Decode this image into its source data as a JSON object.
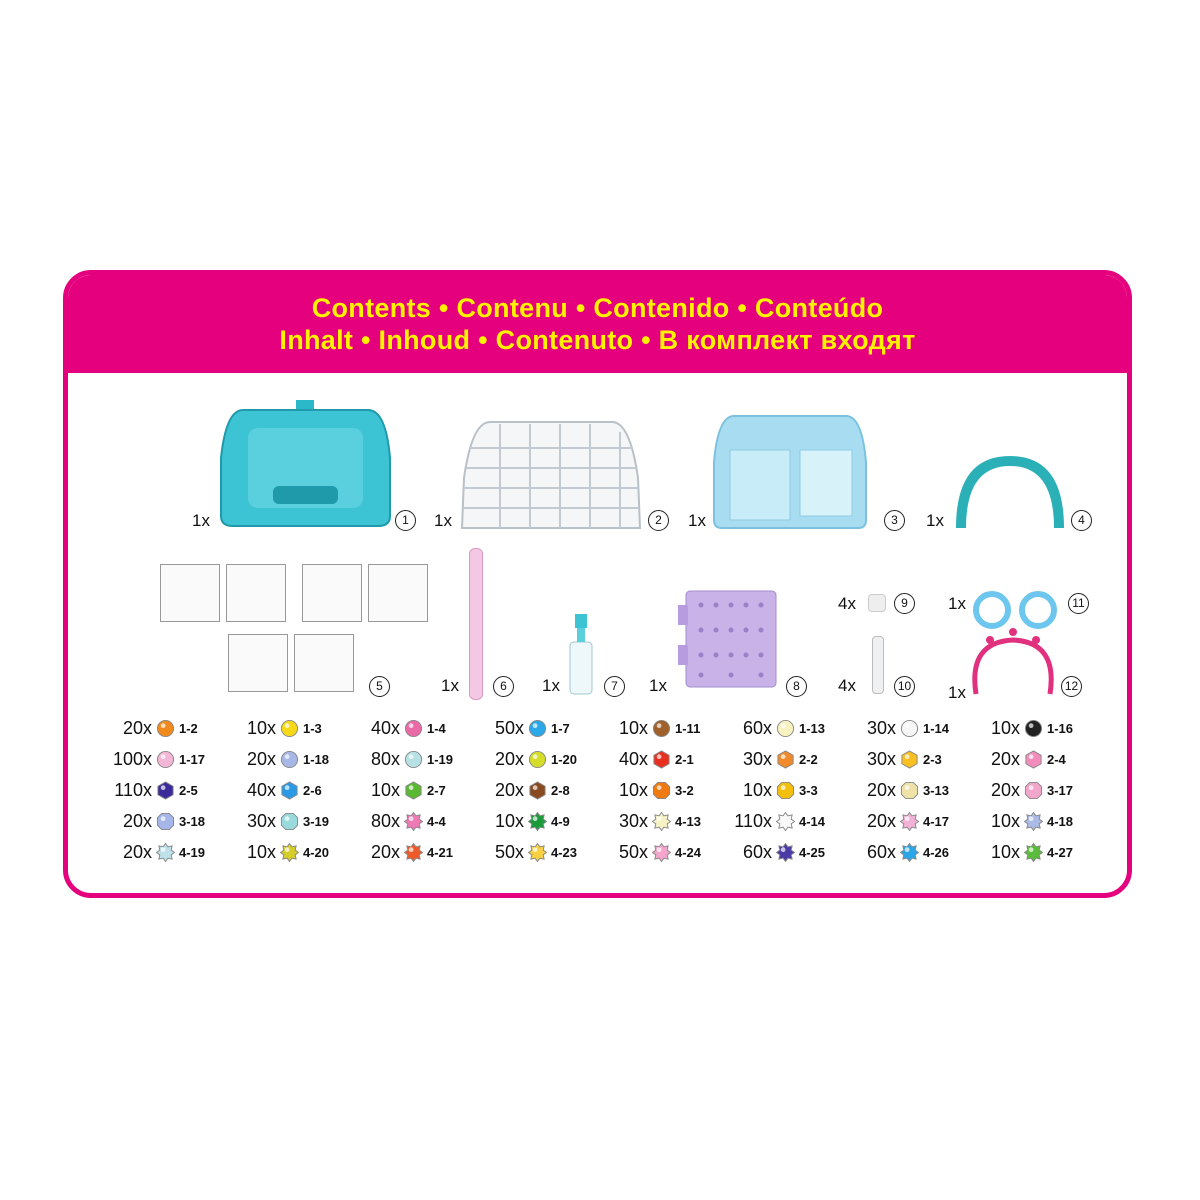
{
  "title": {
    "line1": "Contents • Contenu • Contenido • Conteúdo",
    "line2": "Inhalt • Inhoud • Contenuto • В комплект входят"
  },
  "colors": {
    "frame": "#e5007e",
    "title": "#fff200"
  },
  "components": [
    {
      "qty": "1x",
      "num": "1",
      "name": "case"
    },
    {
      "qty": "1x",
      "num": "2",
      "name": "bead-tray"
    },
    {
      "qty": "1x",
      "num": "3",
      "name": "case-lid"
    },
    {
      "qty": "1x",
      "num": "4",
      "name": "arch-template"
    },
    {
      "qty": "",
      "num": "5",
      "name": "template-sheets"
    },
    {
      "qty": "1x",
      "num": "6",
      "name": "bead-pen"
    },
    {
      "qty": "1x",
      "num": "7",
      "name": "spray-bottle"
    },
    {
      "qty": "1x",
      "num": "8",
      "name": "pegboard"
    },
    {
      "qty": "4x",
      "num": "9",
      "name": "connector"
    },
    {
      "qty": "4x",
      "num": "10",
      "name": "tool"
    },
    {
      "qty": "1x",
      "num": "11",
      "name": "rings"
    },
    {
      "qty": "1x",
      "num": "12",
      "name": "headband"
    }
  ],
  "beads": [
    [
      {
        "q": "20x",
        "c": "1-2",
        "col": "#f08a1c",
        "s": "round"
      },
      {
        "q": "10x",
        "c": "1-3",
        "col": "#f7d91a",
        "s": "round"
      },
      {
        "q": "40x",
        "c": "1-4",
        "col": "#ea6aa8",
        "s": "round"
      },
      {
        "q": "50x",
        "c": "1-7",
        "col": "#2aa8e8",
        "s": "round"
      },
      {
        "q": "10x",
        "c": "1-11",
        "col": "#a0602a",
        "s": "round"
      },
      {
        "q": "60x",
        "c": "1-13",
        "col": "#f8f2c0",
        "s": "round"
      },
      {
        "q": "30x",
        "c": "1-14",
        "col": "#f6f6f6",
        "s": "round"
      },
      {
        "q": "10x",
        "c": "1-16",
        "col": "#222222",
        "s": "round"
      }
    ],
    [
      {
        "q": "100x",
        "c": "1-17",
        "col": "#f4b6d6",
        "s": "round"
      },
      {
        "q": "20x",
        "c": "1-18",
        "col": "#a8b8e6",
        "s": "round"
      },
      {
        "q": "80x",
        "c": "1-19",
        "col": "#b6e2e6",
        "s": "round"
      },
      {
        "q": "20x",
        "c": "1-20",
        "col": "#d6dc2a",
        "s": "round"
      },
      {
        "q": "40x",
        "c": "2-1",
        "col": "#e83020",
        "s": "hex"
      },
      {
        "q": "30x",
        "c": "2-2",
        "col": "#f08a2a",
        "s": "hex"
      },
      {
        "q": "30x",
        "c": "2-3",
        "col": "#f8c020",
        "s": "hex"
      },
      {
        "q": "20x",
        "c": "2-4",
        "col": "#f28cbc",
        "s": "hex"
      }
    ],
    [
      {
        "q": "110x",
        "c": "2-5",
        "col": "#3a2a9a",
        "s": "hex"
      },
      {
        "q": "40x",
        "c": "2-6",
        "col": "#2a9ae6",
        "s": "hex"
      },
      {
        "q": "10x",
        "c": "2-7",
        "col": "#5ab832",
        "s": "hex"
      },
      {
        "q": "20x",
        "c": "2-8",
        "col": "#8a4a20",
        "s": "hex"
      },
      {
        "q": "10x",
        "c": "3-2",
        "col": "#f07a10",
        "s": "oct"
      },
      {
        "q": "10x",
        "c": "3-3",
        "col": "#f4c010",
        "s": "oct"
      },
      {
        "q": "20x",
        "c": "3-13",
        "col": "#eee2a8",
        "s": "oct"
      },
      {
        "q": "20x",
        "c": "3-17",
        "col": "#f2a6cc",
        "s": "oct"
      }
    ],
    [
      {
        "q": "20x",
        "c": "3-18",
        "col": "#a6b6e8",
        "s": "oct"
      },
      {
        "q": "30x",
        "c": "3-19",
        "col": "#9adadc",
        "s": "oct"
      },
      {
        "q": "80x",
        "c": "4-4",
        "col": "#ee7ab6",
        "s": "star"
      },
      {
        "q": "10x",
        "c": "4-9",
        "col": "#1a9a3a",
        "s": "star"
      },
      {
        "q": "30x",
        "c": "4-13",
        "col": "#f6f2c4",
        "s": "star"
      },
      {
        "q": "110x",
        "c": "4-14",
        "col": "#f8f8f8",
        "s": "star"
      },
      {
        "q": "20x",
        "c": "4-17",
        "col": "#f2b2d6",
        "s": "star"
      },
      {
        "q": "10x",
        "c": "4-18",
        "col": "#aabce6",
        "s": "star"
      }
    ],
    [
      {
        "q": "20x",
        "c": "4-19",
        "col": "#bfe2ea",
        "s": "star"
      },
      {
        "q": "10x",
        "c": "4-20",
        "col": "#d6cc2a",
        "s": "star"
      },
      {
        "q": "20x",
        "c": "4-21",
        "col": "#ee5a2a",
        "s": "star"
      },
      {
        "q": "50x",
        "c": "4-23",
        "col": "#f8d040",
        "s": "star"
      },
      {
        "q": "50x",
        "c": "4-24",
        "col": "#f4a6cc",
        "s": "star"
      },
      {
        "q": "60x",
        "c": "4-25",
        "col": "#4a3aa6",
        "s": "star"
      },
      {
        "q": "60x",
        "c": "4-26",
        "col": "#2aa6e8",
        "s": "star"
      },
      {
        "q": "10x",
        "c": "4-27",
        "col": "#5abc3a",
        "s": "star"
      }
    ]
  ]
}
